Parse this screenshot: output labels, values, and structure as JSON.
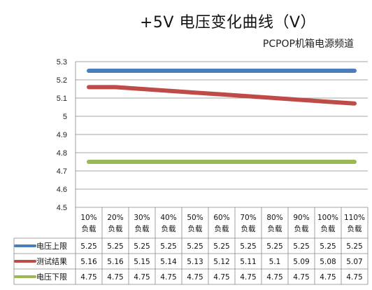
{
  "title": "+5V 电压变化曲线（V）",
  "subtitle": "PCPOP机箱电源频道",
  "chart_data": {
    "type": "line",
    "categories": [
      [
        "10%",
        "负载"
      ],
      [
        "20%",
        "负载"
      ],
      [
        "30%",
        "负载"
      ],
      [
        "40%",
        "负载"
      ],
      [
        "50%",
        "负载"
      ],
      [
        "60%",
        "负载"
      ],
      [
        "70%",
        "负载"
      ],
      [
        "80%",
        "负载"
      ],
      [
        "90%",
        "负载"
      ],
      [
        "100%",
        "负载"
      ],
      [
        "110%",
        "负载"
      ]
    ],
    "ylim": [
      4.5,
      5.3
    ],
    "yticks": [
      "5.3",
      "5.2",
      "5.1",
      "5",
      "4.9",
      "4.8",
      "4.7",
      "4.6",
      "4.5"
    ],
    "ytick_values": [
      5.3,
      5.2,
      5.1,
      5.0,
      4.9,
      4.8,
      4.7,
      4.6,
      4.5
    ],
    "grid": true,
    "legend_placement": "data-table",
    "series": [
      {
        "name": "电压上限",
        "color": "#4a7ebb",
        "values": [
          5.25,
          5.25,
          5.25,
          5.25,
          5.25,
          5.25,
          5.25,
          5.25,
          5.25,
          5.25,
          5.25
        ],
        "labels": [
          "5.25",
          "5.25",
          "5.25",
          "5.25",
          "5.25",
          "5.25",
          "5.25",
          "5.25",
          "5.25",
          "5.25",
          "5.25"
        ]
      },
      {
        "name": "测试结果",
        "color": "#be4b48",
        "values": [
          5.16,
          5.16,
          5.15,
          5.14,
          5.13,
          5.12,
          5.11,
          5.1,
          5.09,
          5.08,
          5.07
        ],
        "labels": [
          "5.16",
          "5.16",
          "5.15",
          "5.14",
          "5.13",
          "5.12",
          "5.11",
          "5.1",
          "5.09",
          "5.08",
          "5.07"
        ]
      },
      {
        "name": "电压下限",
        "color": "#98b954",
        "values": [
          4.75,
          4.75,
          4.75,
          4.75,
          4.75,
          4.75,
          4.75,
          4.75,
          4.75,
          4.75,
          4.75
        ],
        "labels": [
          "4.75",
          "4.75",
          "4.75",
          "4.75",
          "4.75",
          "4.75",
          "4.75",
          "4.75",
          "4.75",
          "4.75",
          "4.75"
        ]
      }
    ]
  }
}
